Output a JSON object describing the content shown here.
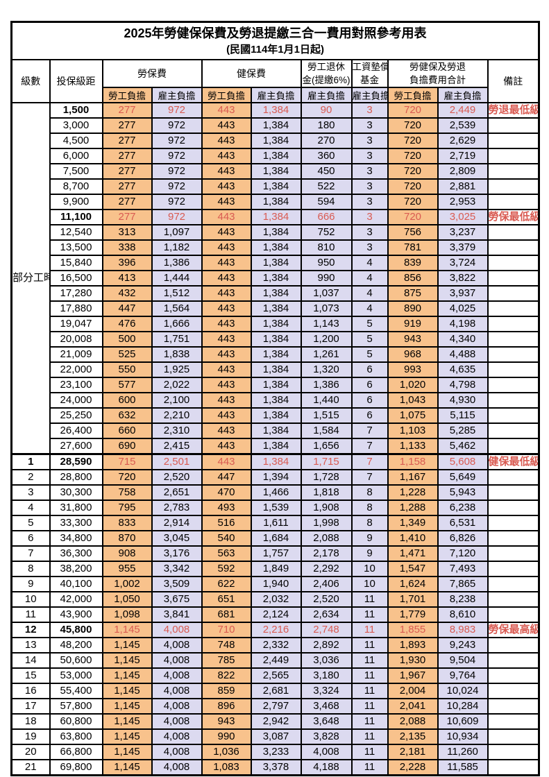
{
  "title": "2025年勞健保保費及勞退提繳三合一費用對照參考用表",
  "subtitle": "(民國114年1月1日起)",
  "colors": {
    "employee_bg": "#F8C28C",
    "employer_bg": "#DCDAF0",
    "highlight_text": "#D95B52"
  },
  "header": {
    "level": "級數",
    "bracket": "投保級距",
    "labor_insurance": "勞保費",
    "health_insurance": "健保費",
    "pension_line1": "勞工退休",
    "pension_line2": "金(提繳6%)",
    "wage_fund_line1": "工資墊償",
    "wage_fund_line2": "基金",
    "total_line1": "勞健保及勞退",
    "total_line2": "負擔費用合計",
    "remark": "備註",
    "employee": "勞工負擔",
    "employer": "雇主負擔"
  },
  "part_time": {
    "label": "部分工時",
    "span": 23
  },
  "rows": [
    {
      "lv": "",
      "br": "1,500",
      "v": [
        "277",
        "972",
        "443",
        "1,384",
        "90",
        "3",
        "720",
        "2,449"
      ],
      "rm": "勞退最低級距",
      "hl": true
    },
    {
      "lv": "",
      "br": "3,000",
      "v": [
        "277",
        "972",
        "443",
        "1,384",
        "180",
        "3",
        "720",
        "2,539"
      ],
      "rm": "",
      "hl": false
    },
    {
      "lv": "",
      "br": "4,500",
      "v": [
        "277",
        "972",
        "443",
        "1,384",
        "270",
        "3",
        "720",
        "2,629"
      ],
      "rm": "",
      "hl": false
    },
    {
      "lv": "",
      "br": "6,000",
      "v": [
        "277",
        "972",
        "443",
        "1,384",
        "360",
        "3",
        "720",
        "2,719"
      ],
      "rm": "",
      "hl": false
    },
    {
      "lv": "",
      "br": "7,500",
      "v": [
        "277",
        "972",
        "443",
        "1,384",
        "450",
        "3",
        "720",
        "2,809"
      ],
      "rm": "",
      "hl": false
    },
    {
      "lv": "",
      "br": "8,700",
      "v": [
        "277",
        "972",
        "443",
        "1,384",
        "522",
        "3",
        "720",
        "2,881"
      ],
      "rm": "",
      "hl": false
    },
    {
      "lv": "",
      "br": "9,900",
      "v": [
        "277",
        "972",
        "443",
        "1,384",
        "594",
        "3",
        "720",
        "2,953"
      ],
      "rm": "",
      "hl": false
    },
    {
      "lv": "",
      "br": "11,100",
      "v": [
        "277",
        "972",
        "443",
        "1,384",
        "666",
        "3",
        "720",
        "3,025"
      ],
      "rm": "勞保最低級距",
      "hl": true
    },
    {
      "lv": "",
      "br": "12,540",
      "v": [
        "313",
        "1,097",
        "443",
        "1,384",
        "752",
        "3",
        "756",
        "3,237"
      ],
      "rm": "",
      "hl": false
    },
    {
      "lv": "",
      "br": "13,500",
      "v": [
        "338",
        "1,182",
        "443",
        "1,384",
        "810",
        "3",
        "781",
        "3,379"
      ],
      "rm": "",
      "hl": false
    },
    {
      "lv": "",
      "br": "15,840",
      "v": [
        "396",
        "1,386",
        "443",
        "1,384",
        "950",
        "4",
        "839",
        "3,724"
      ],
      "rm": "",
      "hl": false
    },
    {
      "lv": "",
      "br": "16,500",
      "v": [
        "413",
        "1,444",
        "443",
        "1,384",
        "990",
        "4",
        "856",
        "3,822"
      ],
      "rm": "",
      "hl": false
    },
    {
      "lv": "",
      "br": "17,280",
      "v": [
        "432",
        "1,512",
        "443",
        "1,384",
        "1,037",
        "4",
        "875",
        "3,937"
      ],
      "rm": "",
      "hl": false
    },
    {
      "lv": "",
      "br": "17,880",
      "v": [
        "447",
        "1,564",
        "443",
        "1,384",
        "1,073",
        "4",
        "890",
        "4,025"
      ],
      "rm": "",
      "hl": false
    },
    {
      "lv": "",
      "br": "19,047",
      "v": [
        "476",
        "1,666",
        "443",
        "1,384",
        "1,143",
        "5",
        "919",
        "4,198"
      ],
      "rm": "",
      "hl": false
    },
    {
      "lv": "",
      "br": "20,008",
      "v": [
        "500",
        "1,751",
        "443",
        "1,384",
        "1,200",
        "5",
        "943",
        "4,340"
      ],
      "rm": "",
      "hl": false
    },
    {
      "lv": "",
      "br": "21,009",
      "v": [
        "525",
        "1,838",
        "443",
        "1,384",
        "1,261",
        "5",
        "968",
        "4,488"
      ],
      "rm": "",
      "hl": false
    },
    {
      "lv": "",
      "br": "22,000",
      "v": [
        "550",
        "1,925",
        "443",
        "1,384",
        "1,320",
        "6",
        "993",
        "4,635"
      ],
      "rm": "",
      "hl": false
    },
    {
      "lv": "",
      "br": "23,100",
      "v": [
        "577",
        "2,022",
        "443",
        "1,384",
        "1,386",
        "6",
        "1,020",
        "4,798"
      ],
      "rm": "",
      "hl": false
    },
    {
      "lv": "",
      "br": "24,000",
      "v": [
        "600",
        "2,100",
        "443",
        "1,384",
        "1,440",
        "6",
        "1,043",
        "4,930"
      ],
      "rm": "",
      "hl": false
    },
    {
      "lv": "",
      "br": "25,250",
      "v": [
        "632",
        "2,210",
        "443",
        "1,384",
        "1,515",
        "6",
        "1,075",
        "5,115"
      ],
      "rm": "",
      "hl": false
    },
    {
      "lv": "",
      "br": "26,400",
      "v": [
        "660",
        "2,310",
        "443",
        "1,384",
        "1,584",
        "7",
        "1,103",
        "5,285"
      ],
      "rm": "",
      "hl": false
    },
    {
      "lv": "",
      "br": "27,600",
      "v": [
        "690",
        "2,415",
        "443",
        "1,384",
        "1,656",
        "7",
        "1,133",
        "5,462"
      ],
      "rm": "",
      "hl": false
    },
    {
      "lv": "1",
      "br": "28,590",
      "v": [
        "715",
        "2,501",
        "443",
        "1,384",
        "1,715",
        "7",
        "1,158",
        "5,608"
      ],
      "rm": "健保最低級距",
      "hl": true,
      "sep": true
    },
    {
      "lv": "2",
      "br": "28,800",
      "v": [
        "720",
        "2,520",
        "447",
        "1,394",
        "1,728",
        "7",
        "1,167",
        "5,649"
      ],
      "rm": "",
      "hl": false
    },
    {
      "lv": "3",
      "br": "30,300",
      "v": [
        "758",
        "2,651",
        "470",
        "1,466",
        "1,818",
        "8",
        "1,228",
        "5,943"
      ],
      "rm": "",
      "hl": false
    },
    {
      "lv": "4",
      "br": "31,800",
      "v": [
        "795",
        "2,783",
        "493",
        "1,539",
        "1,908",
        "8",
        "1,288",
        "6,238"
      ],
      "rm": "",
      "hl": false
    },
    {
      "lv": "5",
      "br": "33,300",
      "v": [
        "833",
        "2,914",
        "516",
        "1,611",
        "1,998",
        "8",
        "1,349",
        "6,531"
      ],
      "rm": "",
      "hl": false
    },
    {
      "lv": "6",
      "br": "34,800",
      "v": [
        "870",
        "3,045",
        "540",
        "1,684",
        "2,088",
        "9",
        "1,410",
        "6,826"
      ],
      "rm": "",
      "hl": false
    },
    {
      "lv": "7",
      "br": "36,300",
      "v": [
        "908",
        "3,176",
        "563",
        "1,757",
        "2,178",
        "9",
        "1,471",
        "7,120"
      ],
      "rm": "",
      "hl": false
    },
    {
      "lv": "8",
      "br": "38,200",
      "v": [
        "955",
        "3,342",
        "592",
        "1,849",
        "2,292",
        "10",
        "1,547",
        "7,493"
      ],
      "rm": "",
      "hl": false
    },
    {
      "lv": "9",
      "br": "40,100",
      "v": [
        "1,002",
        "3,509",
        "622",
        "1,940",
        "2,406",
        "10",
        "1,624",
        "7,865"
      ],
      "rm": "",
      "hl": false
    },
    {
      "lv": "10",
      "br": "42,000",
      "v": [
        "1,050",
        "3,675",
        "651",
        "2,032",
        "2,520",
        "11",
        "1,701",
        "8,238"
      ],
      "rm": "",
      "hl": false
    },
    {
      "lv": "11",
      "br": "43,900",
      "v": [
        "1,098",
        "3,841",
        "681",
        "2,124",
        "2,634",
        "11",
        "1,779",
        "8,610"
      ],
      "rm": "",
      "hl": false
    },
    {
      "lv": "12",
      "br": "45,800",
      "v": [
        "1,145",
        "4,008",
        "710",
        "2,216",
        "2,748",
        "11",
        "1,855",
        "8,983"
      ],
      "rm": "勞保最高級距",
      "hl": true
    },
    {
      "lv": "13",
      "br": "48,200",
      "v": [
        "1,145",
        "4,008",
        "748",
        "2,332",
        "2,892",
        "11",
        "1,893",
        "9,243"
      ],
      "rm": "",
      "hl": false
    },
    {
      "lv": "14",
      "br": "50,600",
      "v": [
        "1,145",
        "4,008",
        "785",
        "2,449",
        "3,036",
        "11",
        "1,930",
        "9,504"
      ],
      "rm": "",
      "hl": false
    },
    {
      "lv": "15",
      "br": "53,000",
      "v": [
        "1,145",
        "4,008",
        "822",
        "2,565",
        "3,180",
        "11",
        "1,967",
        "9,764"
      ],
      "rm": "",
      "hl": false
    },
    {
      "lv": "16",
      "br": "55,400",
      "v": [
        "1,145",
        "4,008",
        "859",
        "2,681",
        "3,324",
        "11",
        "2,004",
        "10,024"
      ],
      "rm": "",
      "hl": false
    },
    {
      "lv": "17",
      "br": "57,800",
      "v": [
        "1,145",
        "4,008",
        "896",
        "2,797",
        "3,468",
        "11",
        "2,041",
        "10,284"
      ],
      "rm": "",
      "hl": false
    },
    {
      "lv": "18",
      "br": "60,800",
      "v": [
        "1,145",
        "4,008",
        "943",
        "2,942",
        "3,648",
        "11",
        "2,088",
        "10,609"
      ],
      "rm": "",
      "hl": false
    },
    {
      "lv": "19",
      "br": "63,800",
      "v": [
        "1,145",
        "4,008",
        "990",
        "3,087",
        "3,828",
        "11",
        "2,135",
        "10,934"
      ],
      "rm": "",
      "hl": false
    },
    {
      "lv": "20",
      "br": "66,800",
      "v": [
        "1,145",
        "4,008",
        "1,036",
        "3,233",
        "4,008",
        "11",
        "2,181",
        "11,260"
      ],
      "rm": "",
      "hl": false
    },
    {
      "lv": "21",
      "br": "69,800",
      "v": [
        "1,145",
        "4,008",
        "1,083",
        "3,378",
        "4,188",
        "11",
        "2,228",
        "11,585"
      ],
      "rm": "",
      "hl": false
    }
  ]
}
